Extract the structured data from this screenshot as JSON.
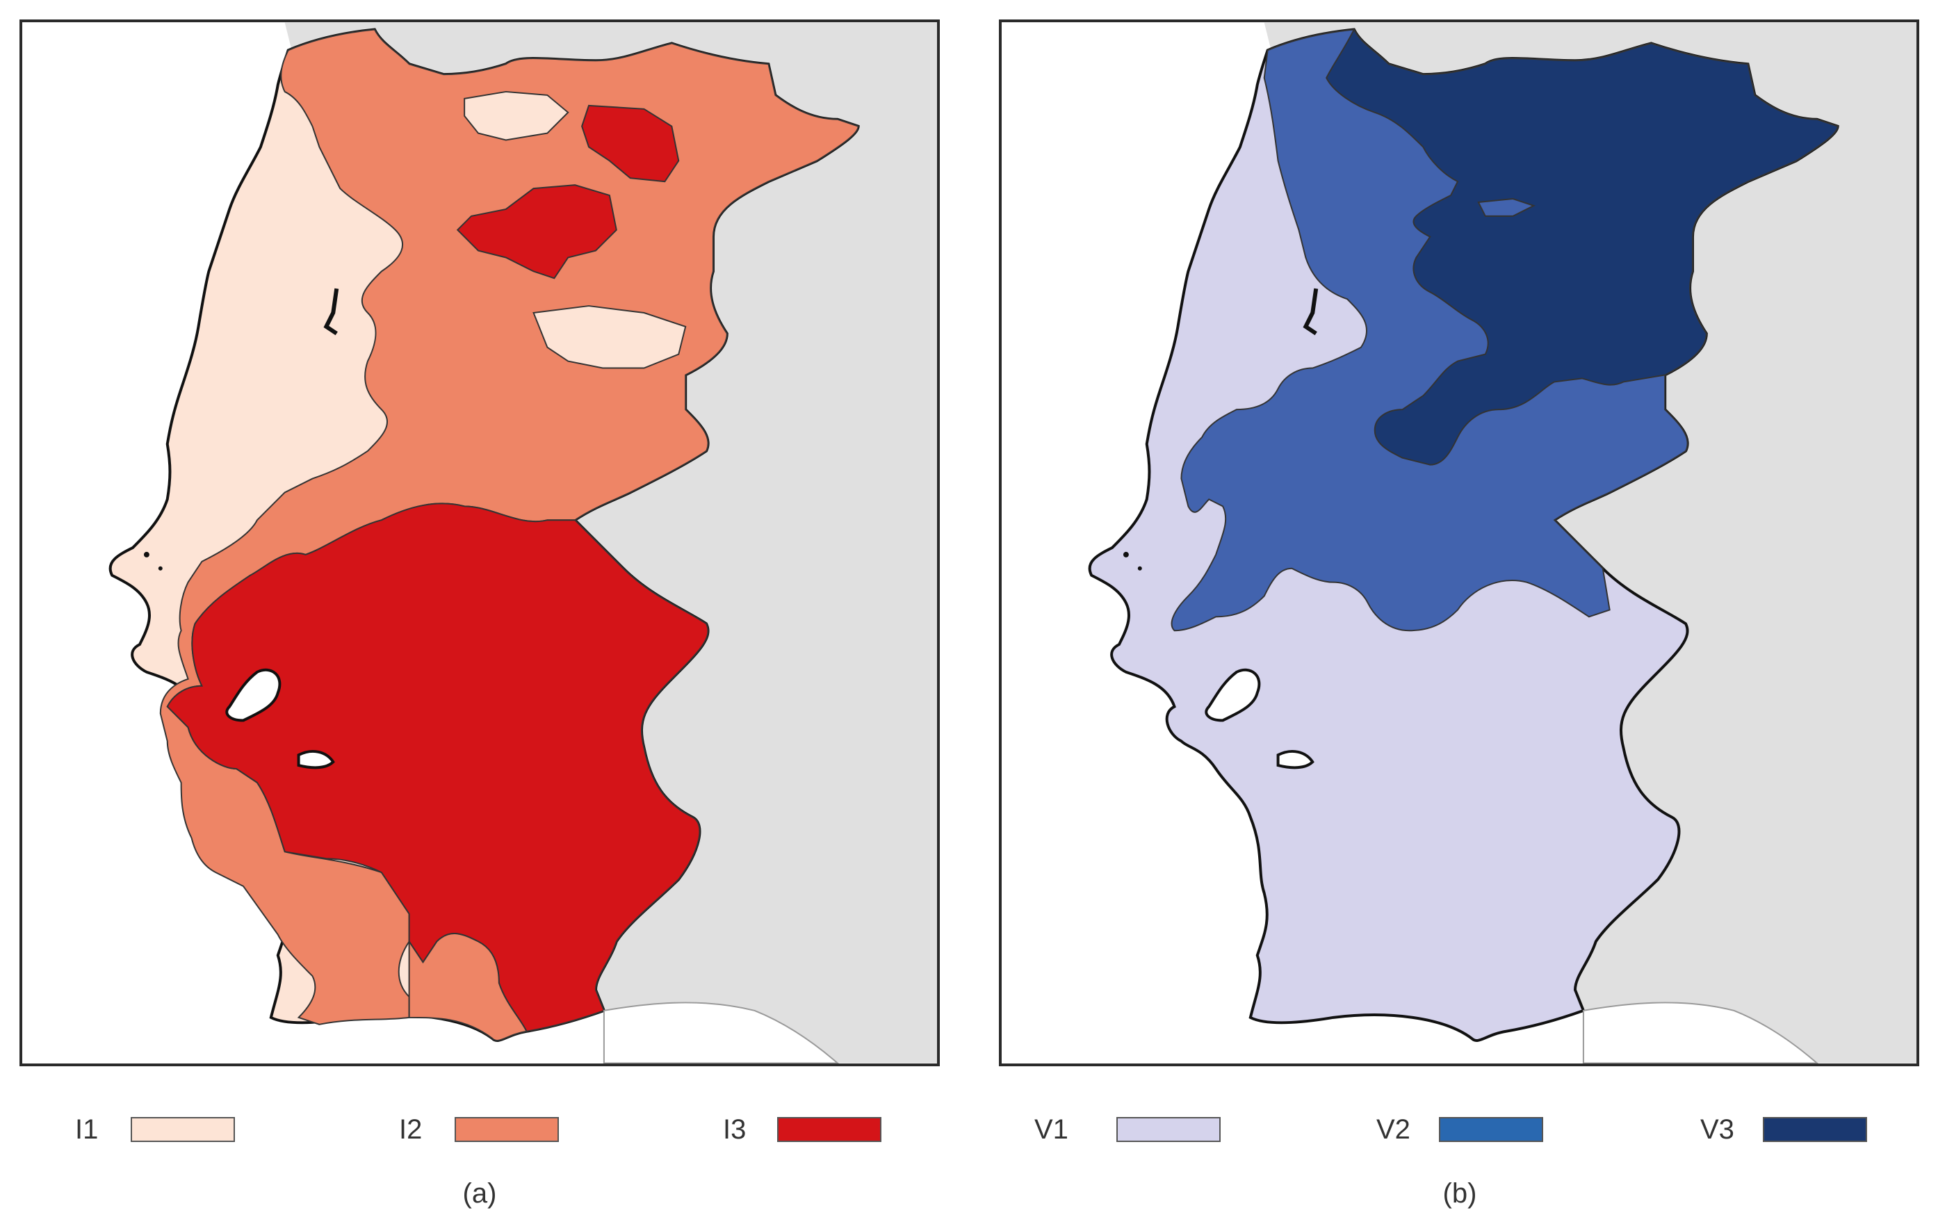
{
  "map_a": {
    "classes": [
      {
        "label": "I1",
        "color": "#fde4d6"
      },
      {
        "label": "I2",
        "color": "#ee8566"
      },
      {
        "label": "I3",
        "color": "#d41418"
      }
    ],
    "caption": "(a)"
  },
  "map_b": {
    "classes": [
      {
        "label": "V1",
        "color": "#d5d3ec"
      },
      {
        "label": "V2",
        "color": "#2968b0"
      },
      {
        "label": "V3",
        "color": "#1a3870"
      }
    ],
    "fill_v2_region": "#4263ae",
    "caption": "(b)"
  },
  "colors": {
    "neighbor_land": "#e0e0e0",
    "sea": "#ffffff",
    "border": "#111111"
  }
}
